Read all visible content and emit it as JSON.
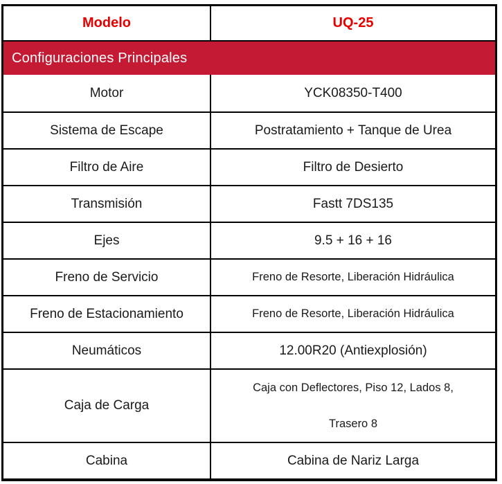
{
  "table": {
    "header": {
      "col1": "Modelo",
      "col2": "UQ-25",
      "text_color": "#e60000"
    },
    "section_banner": {
      "label": "Configuraciones Principales",
      "background": "#c41a33",
      "text_color": "#ffffff"
    },
    "border_color": "#000000",
    "rows": [
      {
        "label": "Motor",
        "value_lines": [
          "YCK08350-T400"
        ]
      },
      {
        "label": "Sistema de Escape",
        "value_lines": [
          "Postratamiento + Tanque de Urea"
        ]
      },
      {
        "label": "Filtro de Aire",
        "value_lines": [
          "Filtro de Desierto"
        ]
      },
      {
        "label": "Transmisión",
        "value_lines": [
          "Fastt 7DS135"
        ]
      },
      {
        "label": "Ejes",
        "value_lines": [
          "9.5 + 16 + 16"
        ]
      },
      {
        "label": "Freno de Servicio",
        "value_lines": [
          "Freno de Resorte, Liberación Hidráulica"
        ]
      },
      {
        "label": "Freno de Estacionamiento",
        "value_lines": [
          "Freno de Resorte, Liberación Hidráulica"
        ]
      },
      {
        "label": "Neumáticos",
        "value_lines": [
          "12.00R20 (Antiexplosión)"
        ]
      },
      {
        "label": "Caja de Carga",
        "value_lines": [
          "Caja con Deflectores, Piso 12, Lados 8,",
          "Trasero 8"
        ]
      },
      {
        "label": "Cabina",
        "value_lines": [
          "Cabina de Nariz Larga"
        ]
      }
    ]
  }
}
